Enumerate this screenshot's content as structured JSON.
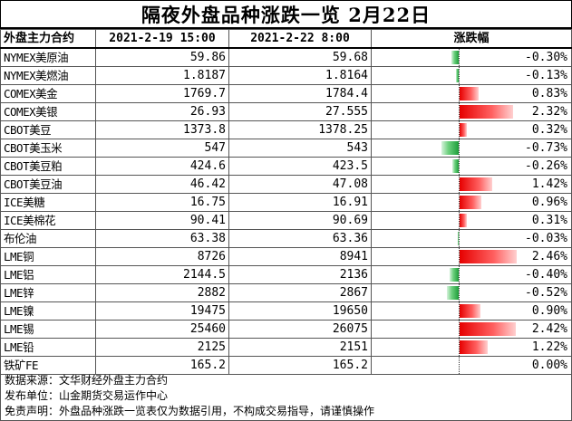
{
  "title": "隔夜外盘品种涨跌一览 2月22日",
  "columns": {
    "name": "外盘主力合约",
    "date1": "2021-2-19 15:00",
    "date2": "2021-2-22 8:00",
    "change": "涨跌幅"
  },
  "rows": [
    {
      "name": "NYMEX美原油",
      "v1": "59.86",
      "v2": "59.68",
      "chg": "-0.30%",
      "pct": -0.3
    },
    {
      "name": "NYMEX美燃油",
      "v1": "1.8187",
      "v2": "1.8164",
      "chg": "-0.13%",
      "pct": -0.13
    },
    {
      "name": "COMEX美金",
      "v1": "1769.7",
      "v2": "1784.4",
      "chg": "0.83%",
      "pct": 0.83
    },
    {
      "name": "COMEX美银",
      "v1": "26.93",
      "v2": "27.555",
      "chg": "2.32%",
      "pct": 2.32
    },
    {
      "name": "CBOT美豆",
      "v1": "1373.8",
      "v2": "1378.25",
      "chg": "0.32%",
      "pct": 0.32
    },
    {
      "name": "CBOT美玉米",
      "v1": "547",
      "v2": "543",
      "chg": "-0.73%",
      "pct": -0.73
    },
    {
      "name": "CBOT美豆粕",
      "v1": "424.6",
      "v2": "423.5",
      "chg": "-0.26%",
      "pct": -0.26
    },
    {
      "name": "CBOT美豆油",
      "v1": "46.42",
      "v2": "47.08",
      "chg": "1.42%",
      "pct": 1.42
    },
    {
      "name": "ICE美糖",
      "v1": "16.75",
      "v2": "16.91",
      "chg": "0.96%",
      "pct": 0.96
    },
    {
      "name": "ICE美棉花",
      "v1": "90.41",
      "v2": "90.69",
      "chg": "0.31%",
      "pct": 0.31
    },
    {
      "name": "布伦油",
      "v1": "63.38",
      "v2": "63.36",
      "chg": "-0.03%",
      "pct": -0.03
    },
    {
      "name": "LME铜",
      "v1": "8726",
      "v2": "8941",
      "chg": "2.46%",
      "pct": 2.46
    },
    {
      "name": "LME铝",
      "v1": "2144.5",
      "v2": "2136",
      "chg": "-0.40%",
      "pct": -0.4
    },
    {
      "name": "LME锌",
      "v1": "2882",
      "v2": "2867",
      "chg": "-0.52%",
      "pct": -0.52
    },
    {
      "name": "LME镍",
      "v1": "19475",
      "v2": "19650",
      "chg": "0.90%",
      "pct": 0.9
    },
    {
      "name": "LME锡",
      "v1": "25460",
      "v2": "26075",
      "chg": "2.42%",
      "pct": 2.42
    },
    {
      "name": "LME铅",
      "v1": "2125",
      "v2": "2151",
      "chg": "1.22%",
      "pct": 1.22
    },
    {
      "name": "铁矿FE",
      "v1": "165.2",
      "v2": "165.2",
      "chg": "0.00%",
      "pct": 0.0
    }
  ],
  "notes": [
    "数据来源：文华财经外盘主力合约",
    "发布单位：山金期货交易运作中心",
    "免责声明：外盘品种涨跌一览表仅为数据引用，不构成交易指导，请谨慎操作"
  ],
  "colors": {
    "up": "#e60000",
    "down": "#1e9e3a"
  }
}
